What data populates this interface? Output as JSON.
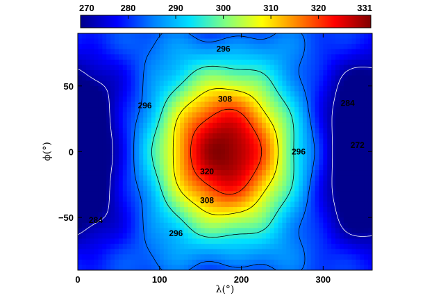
{
  "chart_data": {
    "type": "heatmap",
    "title": "",
    "xlabel": "λ(°)",
    "ylabel": "ϕ(°)",
    "xlim": [
      0,
      360
    ],
    "ylim": [
      -90,
      90
    ],
    "x_ticks": [
      "0",
      "100",
      "200",
      "300"
    ],
    "x_tick_values": [
      0,
      100,
      200,
      300
    ],
    "y_ticks": [
      "50",
      "0",
      "−50"
    ],
    "y_tick_values": [
      50,
      0,
      -50
    ],
    "colorbar": {
      "min": 270,
      "max": 331,
      "tick_labels": [
        "270",
        "280",
        "290",
        "300",
        "310",
        "320",
        "331"
      ],
      "tick_values": [
        270,
        280,
        290,
        300,
        310,
        320,
        331
      ],
      "colormap": [
        "#00008b",
        "#0000ff",
        "#0080ff",
        "#00e0ff",
        "#80ff80",
        "#ffff00",
        "#ff8000",
        "#ff0000",
        "#800000"
      ]
    },
    "field": {
      "substellar_point": {
        "lon": 180,
        "lat": 0,
        "value": 331
      },
      "cold_regions": [
        {
          "lon": 0,
          "lat": 0,
          "value": 272
        },
        {
          "lon": 360,
          "lat": 0,
          "value": 270
        }
      ]
    },
    "contour_levels": [
      272,
      284,
      296,
      308,
      320
    ],
    "contour_labels": [
      {
        "text": "296",
        "lon": 178,
        "lat": 78
      },
      {
        "text": "308",
        "lon": 180,
        "lat": 40
      },
      {
        "text": "320",
        "lon": 158,
        "lat": -15
      },
      {
        "text": "308",
        "lon": 158,
        "lat": -37
      },
      {
        "text": "296",
        "lon": 120,
        "lat": -62
      },
      {
        "text": "296",
        "lon": 82,
        "lat": 35
      },
      {
        "text": "296",
        "lon": 270,
        "lat": 0
      },
      {
        "text": "284",
        "lon": 22,
        "lat": -52
      },
      {
        "text": "284",
        "lon": 330,
        "lat": 37
      },
      {
        "text": "272",
        "lon": 342,
        "lat": 5
      }
    ]
  }
}
